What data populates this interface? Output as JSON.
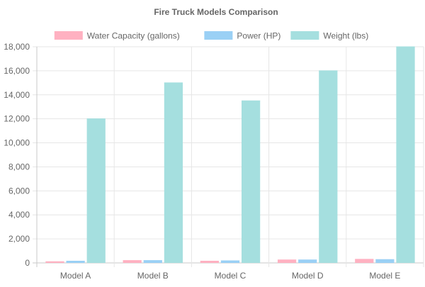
{
  "chart_data": {
    "type": "bar",
    "title": "Fire Truck Models Comparison",
    "categories": [
      "Model A",
      "Model B",
      "Model C",
      "Model D",
      "Model E"
    ],
    "series": [
      {
        "name": "Water Capacity (gallons)",
        "values": [
          100,
          200,
          150,
          250,
          300
        ],
        "color": "#ffb1c1",
        "border": "#ff6384"
      },
      {
        "name": "Power (HP)",
        "values": [
          150,
          200,
          180,
          250,
          280
        ],
        "color": "#9ad0f5",
        "border": "#36a2eb"
      },
      {
        "name": "Weight (lbs)",
        "values": [
          12000,
          15000,
          13500,
          16000,
          18000
        ],
        "color": "#a5dfdf",
        "border": "#4bc0c0"
      }
    ],
    "yticks": [
      0,
      2000,
      4000,
      6000,
      8000,
      10000,
      12000,
      14000,
      16000,
      18000
    ],
    "ytick_labels": [
      "0",
      "2,000",
      "4,000",
      "6,000",
      "8,000",
      "10,000",
      "12,000",
      "14,000",
      "16,000",
      "18,000"
    ],
    "ylim": [
      0,
      18000
    ],
    "xlabel": "",
    "ylabel": "",
    "grid": true,
    "legend": "top-center"
  }
}
